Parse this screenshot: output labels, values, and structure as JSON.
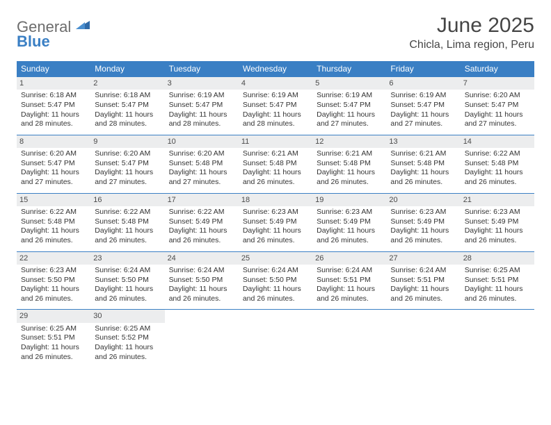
{
  "logo": {
    "text1": "General",
    "text2": "Blue",
    "tri_color": "#2f6aa8"
  },
  "title": "June 2025",
  "subtitle": "Chicla, Lima region, Peru",
  "colors": {
    "header_bg": "#3a7fc4",
    "header_fg": "#ffffff",
    "daynum_bg": "#ecedee",
    "row_border": "#3a7fc4",
    "text": "#333333"
  },
  "day_names": [
    "Sunday",
    "Monday",
    "Tuesday",
    "Wednesday",
    "Thursday",
    "Friday",
    "Saturday"
  ],
  "weeks": [
    [
      {
        "n": "1",
        "sr": "6:18 AM",
        "ss": "5:47 PM",
        "dl": "11 hours and 28 minutes."
      },
      {
        "n": "2",
        "sr": "6:18 AM",
        "ss": "5:47 PM",
        "dl": "11 hours and 28 minutes."
      },
      {
        "n": "3",
        "sr": "6:19 AM",
        "ss": "5:47 PM",
        "dl": "11 hours and 28 minutes."
      },
      {
        "n": "4",
        "sr": "6:19 AM",
        "ss": "5:47 PM",
        "dl": "11 hours and 28 minutes."
      },
      {
        "n": "5",
        "sr": "6:19 AM",
        "ss": "5:47 PM",
        "dl": "11 hours and 27 minutes."
      },
      {
        "n": "6",
        "sr": "6:19 AM",
        "ss": "5:47 PM",
        "dl": "11 hours and 27 minutes."
      },
      {
        "n": "7",
        "sr": "6:20 AM",
        "ss": "5:47 PM",
        "dl": "11 hours and 27 minutes."
      }
    ],
    [
      {
        "n": "8",
        "sr": "6:20 AM",
        "ss": "5:47 PM",
        "dl": "11 hours and 27 minutes."
      },
      {
        "n": "9",
        "sr": "6:20 AM",
        "ss": "5:47 PM",
        "dl": "11 hours and 27 minutes."
      },
      {
        "n": "10",
        "sr": "6:20 AM",
        "ss": "5:48 PM",
        "dl": "11 hours and 27 minutes."
      },
      {
        "n": "11",
        "sr": "6:21 AM",
        "ss": "5:48 PM",
        "dl": "11 hours and 26 minutes."
      },
      {
        "n": "12",
        "sr": "6:21 AM",
        "ss": "5:48 PM",
        "dl": "11 hours and 26 minutes."
      },
      {
        "n": "13",
        "sr": "6:21 AM",
        "ss": "5:48 PM",
        "dl": "11 hours and 26 minutes."
      },
      {
        "n": "14",
        "sr": "6:22 AM",
        "ss": "5:48 PM",
        "dl": "11 hours and 26 minutes."
      }
    ],
    [
      {
        "n": "15",
        "sr": "6:22 AM",
        "ss": "5:48 PM",
        "dl": "11 hours and 26 minutes."
      },
      {
        "n": "16",
        "sr": "6:22 AM",
        "ss": "5:48 PM",
        "dl": "11 hours and 26 minutes."
      },
      {
        "n": "17",
        "sr": "6:22 AM",
        "ss": "5:49 PM",
        "dl": "11 hours and 26 minutes."
      },
      {
        "n": "18",
        "sr": "6:23 AM",
        "ss": "5:49 PM",
        "dl": "11 hours and 26 minutes."
      },
      {
        "n": "19",
        "sr": "6:23 AM",
        "ss": "5:49 PM",
        "dl": "11 hours and 26 minutes."
      },
      {
        "n": "20",
        "sr": "6:23 AM",
        "ss": "5:49 PM",
        "dl": "11 hours and 26 minutes."
      },
      {
        "n": "21",
        "sr": "6:23 AM",
        "ss": "5:49 PM",
        "dl": "11 hours and 26 minutes."
      }
    ],
    [
      {
        "n": "22",
        "sr": "6:23 AM",
        "ss": "5:50 PM",
        "dl": "11 hours and 26 minutes."
      },
      {
        "n": "23",
        "sr": "6:24 AM",
        "ss": "5:50 PM",
        "dl": "11 hours and 26 minutes."
      },
      {
        "n": "24",
        "sr": "6:24 AM",
        "ss": "5:50 PM",
        "dl": "11 hours and 26 minutes."
      },
      {
        "n": "25",
        "sr": "6:24 AM",
        "ss": "5:50 PM",
        "dl": "11 hours and 26 minutes."
      },
      {
        "n": "26",
        "sr": "6:24 AM",
        "ss": "5:51 PM",
        "dl": "11 hours and 26 minutes."
      },
      {
        "n": "27",
        "sr": "6:24 AM",
        "ss": "5:51 PM",
        "dl": "11 hours and 26 minutes."
      },
      {
        "n": "28",
        "sr": "6:25 AM",
        "ss": "5:51 PM",
        "dl": "11 hours and 26 minutes."
      }
    ],
    [
      {
        "n": "29",
        "sr": "6:25 AM",
        "ss": "5:51 PM",
        "dl": "11 hours and 26 minutes."
      },
      {
        "n": "30",
        "sr": "6:25 AM",
        "ss": "5:52 PM",
        "dl": "11 hours and 26 minutes."
      },
      null,
      null,
      null,
      null,
      null
    ]
  ],
  "labels": {
    "sunrise": "Sunrise:",
    "sunset": "Sunset:",
    "daylight": "Daylight:"
  }
}
